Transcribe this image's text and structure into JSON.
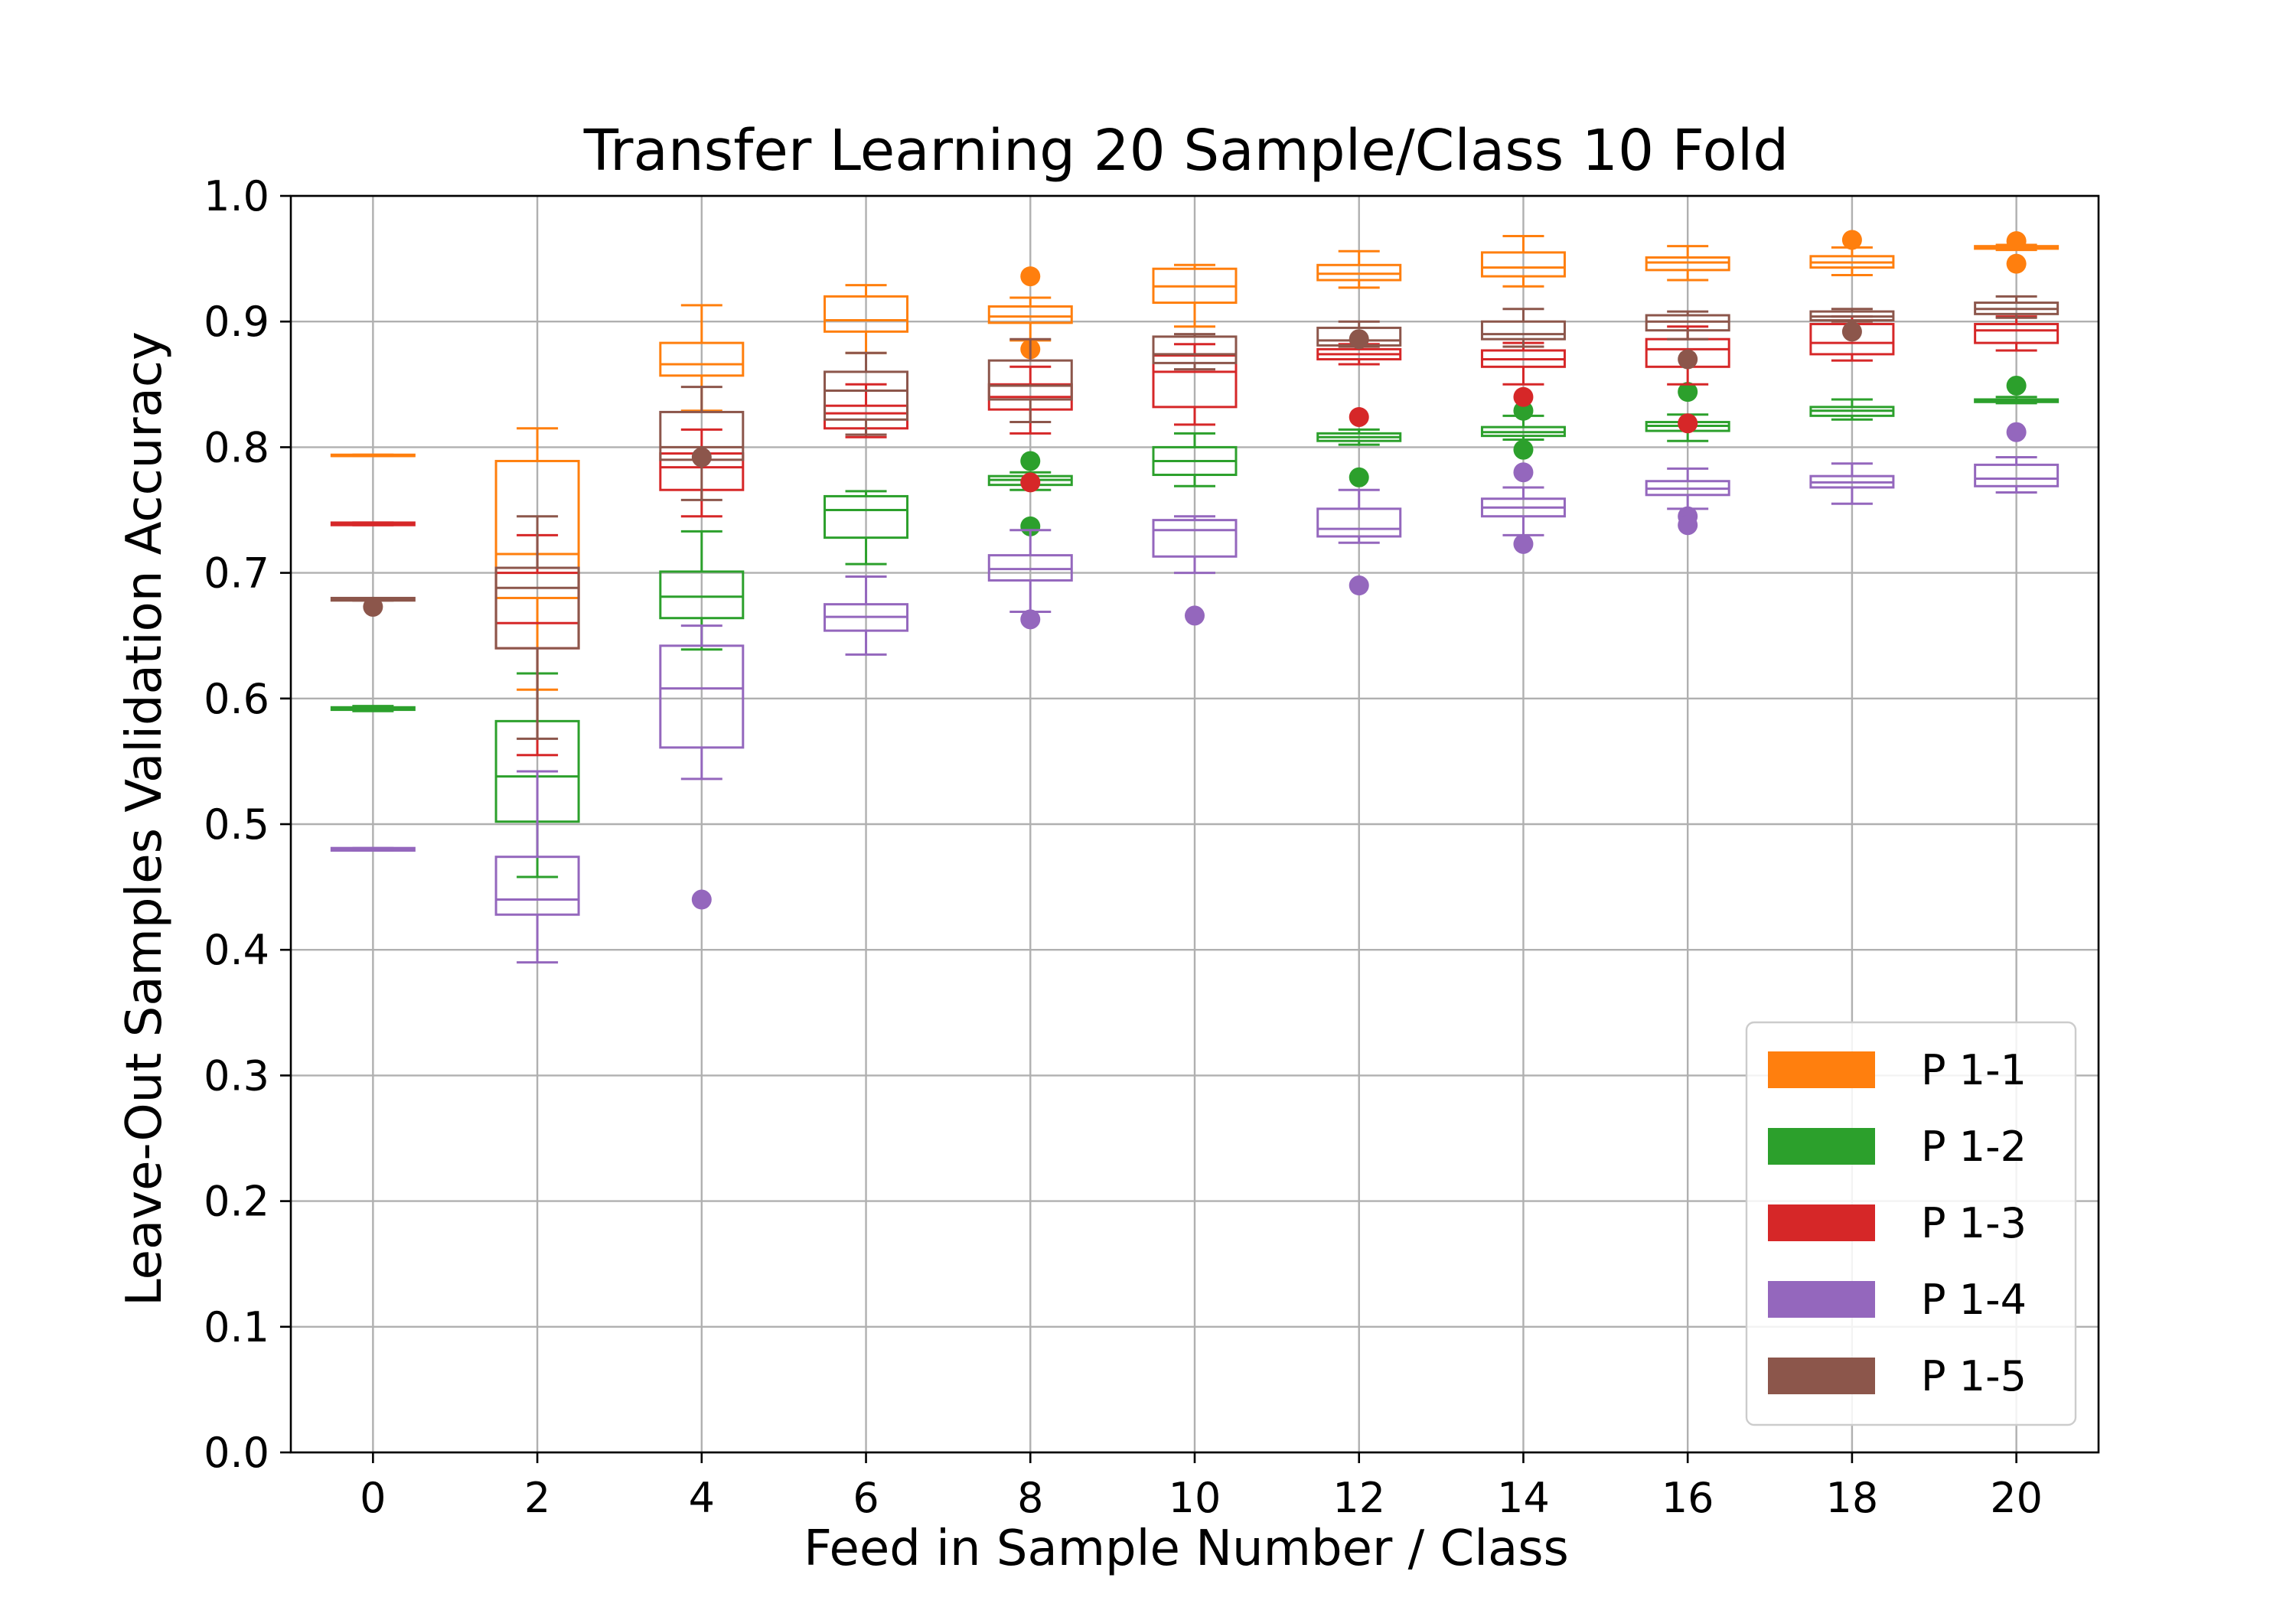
{
  "chart_data": {
    "type": "box",
    "title": "Transfer Learning 20 Sample/Class 10 Fold",
    "xlabel": "Feed in Sample Number / Class",
    "ylabel": "Leave-Out Samples Validation Accuracy",
    "ylim": [
      0.0,
      1.0
    ],
    "xlim": [
      -1,
      21
    ],
    "x_ticks": [
      0,
      2,
      4,
      6,
      8,
      10,
      12,
      14,
      16,
      18,
      20
    ],
    "y_ticks": [
      "0.0",
      "0.1",
      "0.2",
      "0.3",
      "0.4",
      "0.5",
      "0.6",
      "0.7",
      "0.8",
      "0.9",
      "1.0"
    ],
    "grid": true,
    "legend_position": "bottom-right",
    "x": [
      0,
      2,
      4,
      6,
      8,
      10,
      12,
      14,
      16,
      18,
      20
    ],
    "series": [
      {
        "name": "P 1-1",
        "color": "#ff7f0e",
        "boxes": [
          {
            "whislo": 0.793,
            "q1": 0.793,
            "med": 0.793,
            "q3": 0.794,
            "whishi": 0.794,
            "fliers": []
          },
          {
            "whislo": 0.607,
            "q1": 0.68,
            "med": 0.715,
            "q3": 0.789,
            "whishi": 0.815,
            "fliers": []
          },
          {
            "whislo": 0.829,
            "q1": 0.857,
            "med": 0.866,
            "q3": 0.883,
            "whishi": 0.913,
            "fliers": []
          },
          {
            "whislo": 0.875,
            "q1": 0.892,
            "med": 0.901,
            "q3": 0.92,
            "whishi": 0.929,
            "fliers": []
          },
          {
            "whislo": 0.885,
            "q1": 0.899,
            "med": 0.904,
            "q3": 0.912,
            "whishi": 0.919,
            "fliers": [
              0.936,
              0.878
            ]
          },
          {
            "whislo": 0.896,
            "q1": 0.915,
            "med": 0.928,
            "q3": 0.942,
            "whishi": 0.945,
            "fliers": []
          },
          {
            "whislo": 0.927,
            "q1": 0.933,
            "med": 0.938,
            "q3": 0.945,
            "whishi": 0.956,
            "fliers": []
          },
          {
            "whislo": 0.928,
            "q1": 0.936,
            "med": 0.943,
            "q3": 0.955,
            "whishi": 0.968,
            "fliers": []
          },
          {
            "whislo": 0.933,
            "q1": 0.941,
            "med": 0.947,
            "q3": 0.951,
            "whishi": 0.96,
            "fliers": []
          },
          {
            "whislo": 0.937,
            "q1": 0.943,
            "med": 0.947,
            "q3": 0.952,
            "whishi": 0.959,
            "fliers": [
              0.965
            ]
          },
          {
            "whislo": 0.957,
            "q1": 0.958,
            "med": 0.959,
            "q3": 0.96,
            "whishi": 0.961,
            "fliers": [
              0.964,
              0.946
            ]
          }
        ]
      },
      {
        "name": "P 1-2",
        "color": "#2ca02c",
        "boxes": [
          {
            "whislo": 0.59,
            "q1": 0.591,
            "med": 0.592,
            "q3": 0.593,
            "whishi": 0.594,
            "fliers": []
          },
          {
            "whislo": 0.458,
            "q1": 0.502,
            "med": 0.538,
            "q3": 0.582,
            "whishi": 0.62,
            "fliers": []
          },
          {
            "whislo": 0.639,
            "q1": 0.664,
            "med": 0.681,
            "q3": 0.701,
            "whishi": 0.733,
            "fliers": []
          },
          {
            "whislo": 0.707,
            "q1": 0.728,
            "med": 0.75,
            "q3": 0.761,
            "whishi": 0.765,
            "fliers": []
          },
          {
            "whislo": 0.766,
            "q1": 0.77,
            "med": 0.774,
            "q3": 0.777,
            "whishi": 0.78,
            "fliers": [
              0.789,
              0.737
            ]
          },
          {
            "whislo": 0.769,
            "q1": 0.778,
            "med": 0.789,
            "q3": 0.8,
            "whishi": 0.811,
            "fliers": []
          },
          {
            "whislo": 0.802,
            "q1": 0.805,
            "med": 0.808,
            "q3": 0.811,
            "whishi": 0.814,
            "fliers": [
              0.776
            ]
          },
          {
            "whislo": 0.806,
            "q1": 0.809,
            "med": 0.812,
            "q3": 0.816,
            "whishi": 0.825,
            "fliers": [
              0.829,
              0.798
            ]
          },
          {
            "whislo": 0.805,
            "q1": 0.813,
            "med": 0.817,
            "q3": 0.82,
            "whishi": 0.826,
            "fliers": [
              0.844
            ]
          },
          {
            "whislo": 0.822,
            "q1": 0.825,
            "med": 0.829,
            "q3": 0.832,
            "whishi": 0.838,
            "fliers": []
          },
          {
            "whislo": 0.835,
            "q1": 0.836,
            "med": 0.837,
            "q3": 0.838,
            "whishi": 0.84,
            "fliers": [
              0.849
            ]
          }
        ]
      },
      {
        "name": "P 1-3",
        "color": "#d62728",
        "boxes": [
          {
            "whislo": 0.738,
            "q1": 0.738,
            "med": 0.739,
            "q3": 0.74,
            "whishi": 0.74,
            "fliers": []
          },
          {
            "whislo": 0.555,
            "q1": 0.64,
            "med": 0.66,
            "q3": 0.7,
            "whishi": 0.73,
            "fliers": []
          },
          {
            "whislo": 0.745,
            "q1": 0.766,
            "med": 0.784,
            "q3": 0.795,
            "whishi": 0.814,
            "fliers": []
          },
          {
            "whislo": 0.808,
            "q1": 0.815,
            "med": 0.827,
            "q3": 0.833,
            "whishi": 0.85,
            "fliers": []
          },
          {
            "whislo": 0.811,
            "q1": 0.83,
            "med": 0.84,
            "q3": 0.85,
            "whishi": 0.864,
            "fliers": [
              0.772
            ]
          },
          {
            "whislo": 0.818,
            "q1": 0.832,
            "med": 0.86,
            "q3": 0.873,
            "whishi": 0.882,
            "fliers": []
          },
          {
            "whislo": 0.866,
            "q1": 0.87,
            "med": 0.874,
            "q3": 0.878,
            "whishi": 0.882,
            "fliers": [
              0.824
            ]
          },
          {
            "whislo": 0.85,
            "q1": 0.864,
            "med": 0.87,
            "q3": 0.877,
            "whishi": 0.883,
            "fliers": [
              0.84
            ]
          },
          {
            "whislo": 0.85,
            "q1": 0.864,
            "med": 0.878,
            "q3": 0.886,
            "whishi": 0.896,
            "fliers": [
              0.819
            ]
          },
          {
            "whislo": 0.869,
            "q1": 0.874,
            "med": 0.883,
            "q3": 0.898,
            "whishi": 0.904,
            "fliers": []
          },
          {
            "whislo": 0.877,
            "q1": 0.883,
            "med": 0.893,
            "q3": 0.898,
            "whishi": 0.904,
            "fliers": []
          }
        ]
      },
      {
        "name": "P 1-4",
        "color": "#9467bd",
        "boxes": [
          {
            "whislo": 0.479,
            "q1": 0.479,
            "med": 0.48,
            "q3": 0.481,
            "whishi": 0.481,
            "fliers": []
          },
          {
            "whislo": 0.39,
            "q1": 0.428,
            "med": 0.44,
            "q3": 0.474,
            "whishi": 0.542,
            "fliers": []
          },
          {
            "whislo": 0.536,
            "q1": 0.561,
            "med": 0.608,
            "q3": 0.642,
            "whishi": 0.658,
            "fliers": [
              0.44
            ]
          },
          {
            "whislo": 0.635,
            "q1": 0.654,
            "med": 0.665,
            "q3": 0.675,
            "whishi": 0.697,
            "fliers": []
          },
          {
            "whislo": 0.669,
            "q1": 0.694,
            "med": 0.703,
            "q3": 0.714,
            "whishi": 0.734,
            "fliers": [
              0.663
            ]
          },
          {
            "whislo": 0.7,
            "q1": 0.713,
            "med": 0.734,
            "q3": 0.742,
            "whishi": 0.745,
            "fliers": [
              0.666
            ]
          },
          {
            "whislo": 0.724,
            "q1": 0.729,
            "med": 0.735,
            "q3": 0.751,
            "whishi": 0.766,
            "fliers": [
              0.69
            ]
          },
          {
            "whislo": 0.73,
            "q1": 0.745,
            "med": 0.752,
            "q3": 0.759,
            "whishi": 0.768,
            "fliers": [
              0.78,
              0.723
            ]
          },
          {
            "whislo": 0.751,
            "q1": 0.762,
            "med": 0.767,
            "q3": 0.773,
            "whishi": 0.783,
            "fliers": [
              0.745,
              0.738
            ]
          },
          {
            "whislo": 0.755,
            "q1": 0.768,
            "med": 0.772,
            "q3": 0.777,
            "whishi": 0.787,
            "fliers": []
          },
          {
            "whislo": 0.764,
            "q1": 0.769,
            "med": 0.775,
            "q3": 0.786,
            "whishi": 0.792,
            "fliers": [
              0.812
            ]
          }
        ]
      },
      {
        "name": "P 1-5",
        "color": "#8c564b",
        "boxes": [
          {
            "whislo": 0.678,
            "q1": 0.678,
            "med": 0.679,
            "q3": 0.68,
            "whishi": 0.68,
            "fliers": [
              0.673
            ]
          },
          {
            "whislo": 0.568,
            "q1": 0.64,
            "med": 0.688,
            "q3": 0.704,
            "whishi": 0.745,
            "fliers": []
          },
          {
            "whislo": 0.758,
            "q1": 0.79,
            "med": 0.8,
            "q3": 0.828,
            "whishi": 0.848,
            "fliers": [
              0.792
            ]
          },
          {
            "whislo": 0.81,
            "q1": 0.822,
            "med": 0.845,
            "q3": 0.86,
            "whishi": 0.875,
            "fliers": []
          },
          {
            "whislo": 0.82,
            "q1": 0.838,
            "med": 0.849,
            "q3": 0.869,
            "whishi": 0.886,
            "fliers": []
          },
          {
            "whislo": 0.862,
            "q1": 0.867,
            "med": 0.874,
            "q3": 0.888,
            "whishi": 0.89,
            "fliers": []
          },
          {
            "whislo": 0.88,
            "q1": 0.881,
            "med": 0.885,
            "q3": 0.895,
            "whishi": 0.9,
            "fliers": [
              0.886
            ]
          },
          {
            "whislo": 0.88,
            "q1": 0.886,
            "med": 0.89,
            "q3": 0.9,
            "whishi": 0.91,
            "fliers": []
          },
          {
            "whislo": 0.886,
            "q1": 0.893,
            "med": 0.9,
            "q3": 0.905,
            "whishi": 0.908,
            "fliers": [
              0.87
            ]
          },
          {
            "whislo": 0.9,
            "q1": 0.901,
            "med": 0.904,
            "q3": 0.908,
            "whishi": 0.91,
            "fliers": [
              0.892
            ]
          },
          {
            "whislo": 0.903,
            "q1": 0.906,
            "med": 0.91,
            "q3": 0.915,
            "whishi": 0.92,
            "fliers": []
          }
        ]
      }
    ]
  }
}
